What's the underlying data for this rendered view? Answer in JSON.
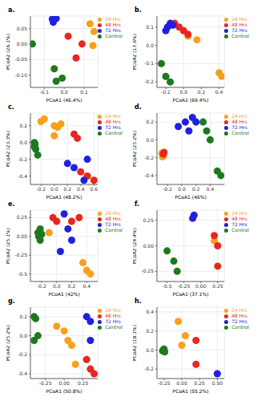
{
  "chart_data": [
    {
      "type": "scatter",
      "title": "a.",
      "x_label": "PCoA1 (46.4%)",
      "y_label": "PCoA2 (26.1%)",
      "grid": true,
      "legend": "right",
      "xlim": [
        -0.17,
        0.17
      ],
      "xticks": [
        -0.1,
        {
          "value": 0,
          "label": "0.0"
        },
        0.1
      ],
      "ylim": [
        -0.14,
        0.09
      ],
      "yticks": [
        {
          "value": -0.1,
          "label": "-0.10"
        },
        -0.05,
        {
          "value": 0,
          "label": "0.00"
        },
        0.05
      ],
      "series": [
        {
          "name": "24 Hrs",
          "color": "#f7a11a",
          "x": [
            0.13,
            0.15,
            0.145
          ],
          "y": [
            0.065,
            0.04,
            -0.005
          ]
        },
        {
          "name": "48 Hrs",
          "color": "#e8261f",
          "x": [
            0.02,
            0.09,
            0.06
          ],
          "y": [
            0.025,
            0.0,
            -0.045
          ]
        },
        {
          "name": "72 Hrs",
          "color": "#2020e0",
          "x": [
            -0.06,
            -0.055,
            -0.04
          ],
          "y": [
            0.08,
            0.07,
            0.082
          ]
        },
        {
          "name": "Control",
          "color": "#1c7a1c",
          "x": [
            -0.16,
            -0.05,
            -0.04,
            -0.01
          ],
          "y": [
            0.0,
            -0.08,
            -0.12,
            -0.11
          ]
        }
      ]
    },
    {
      "type": "scatter",
      "title": "b.",
      "x_label": "PCoA1 (69.4%)",
      "y_label": "PCoA2 (17.6%)",
      "grid": true,
      "legend": "right",
      "xlim": [
        -0.3,
        0.46
      ],
      "xticks": [
        -0.2,
        {
          "value": 0,
          "label": "0.0"
        },
        0.2,
        0.4
      ],
      "ylim": [
        -0.23,
        0.16
      ],
      "yticks": [
        -0.2,
        -0.1,
        {
          "value": 0,
          "label": "0.0"
        },
        0.1
      ],
      "series": [
        {
          "name": "24 Hrs",
          "color": "#f7a11a",
          "x": [
            0.05,
            0.15,
            0.4,
            0.43
          ],
          "y": [
            0.05,
            0.03,
            -0.15,
            -0.17
          ]
        },
        {
          "name": "48 Hrs",
          "color": "#e8261f",
          "x": [
            -0.1,
            -0.05,
            0.0,
            0.05
          ],
          "y": [
            0.12,
            0.1,
            0.08,
            0.06
          ]
        },
        {
          "name": "72 Hrs",
          "color": "#2020e0",
          "x": [
            -0.18,
            -0.15,
            -0.12,
            -0.2
          ],
          "y": [
            0.1,
            0.12,
            0.11,
            0.08
          ]
        },
        {
          "name": "Control",
          "color": "#1c7a1c",
          "x": [
            -0.25,
            -0.2,
            -0.15
          ],
          "y": [
            -0.1,
            -0.17,
            -0.2
          ]
        }
      ]
    },
    {
      "type": "scatter",
      "title": "c.",
      "x_label": "PCoA1 (48.2%)",
      "y_label": "PCoA2 (23.3%)",
      "grid": true,
      "legend": "right",
      "xlim": [
        -0.36,
        0.66
      ],
      "xticks": [
        -0.2,
        {
          "value": 0,
          "label": "0.0"
        },
        0.2,
        0.4,
        0.6
      ],
      "ylim": [
        -0.5,
        0.35
      ],
      "yticks": [
        -0.4,
        -0.2,
        {
          "value": 0,
          "label": "0.0"
        },
        0.2
      ],
      "series": [
        {
          "name": "24 Hrs",
          "color": "#f7a11a",
          "x": [
            -0.2,
            -0.15,
            0.0,
            0.1,
            0.05,
            0.0
          ],
          "y": [
            0.25,
            0.28,
            0.2,
            0.22,
            0.18,
            0.08
          ]
        },
        {
          "name": "48 Hrs",
          "color": "#e8261f",
          "x": [
            0.3,
            0.35,
            0.4,
            0.5,
            0.6
          ],
          "y": [
            0.1,
            0.05,
            -0.35,
            -0.4,
            -0.45
          ]
        },
        {
          "name": "72 Hrs",
          "color": "#2020e0",
          "x": [
            0.2,
            0.3,
            0.45,
            0.5
          ],
          "y": [
            -0.25,
            -0.3,
            -0.45,
            -0.2
          ]
        },
        {
          "name": "Control",
          "color": "#1c7a1c",
          "x": [
            -0.3,
            -0.29,
            -0.3,
            -0.28,
            -0.25
          ],
          "y": [
            0.0,
            -0.02,
            -0.05,
            -0.08,
            -0.15
          ]
        }
      ]
    },
    {
      "type": "scatter",
      "title": "d.",
      "x_label": "PCoA1 (46%)",
      "y_label": "PCoA2 (25.2%)",
      "grid": true,
      "legend": "right",
      "xlim": [
        -0.35,
        0.6
      ],
      "xticks": [
        -0.2,
        {
          "value": 0,
          "label": "0.0"
        },
        0.2,
        0.4
      ],
      "ylim": [
        -0.5,
        0.3
      ],
      "yticks": [
        -0.4,
        -0.2,
        {
          "value": 0,
          "label": "0.0"
        },
        0.2
      ],
      "series": [
        {
          "name": "24 Hrs",
          "color": "#f7a11a",
          "x": [
            -0.28,
            -0.27,
            -0.26,
            -0.27
          ],
          "y": [
            -0.15,
            -0.17,
            -0.18,
            -0.19
          ]
        },
        {
          "name": "48 Hrs",
          "color": "#e8261f",
          "x": [
            -0.25,
            -0.26
          ],
          "y": [
            -0.14,
            -0.16
          ]
        },
        {
          "name": "72 Hrs",
          "color": "#2020e0",
          "x": [
            -0.05,
            0.05,
            0.15,
            0.2,
            0.1
          ],
          "y": [
            0.15,
            0.2,
            0.25,
            0.2,
            0.1
          ]
        },
        {
          "name": "Control",
          "color": "#1c7a1c",
          "x": [
            0.3,
            0.35,
            0.4,
            0.5,
            0.55
          ],
          "y": [
            0.2,
            0.1,
            0.0,
            -0.35,
            -0.4
          ]
        }
      ]
    },
    {
      "type": "scatter",
      "title": "e.",
      "x_label": "PCoA1 (42%)",
      "y_label": "PCoA2 (25.1%)",
      "grid": true,
      "legend": "right",
      "xlim": [
        -0.35,
        0.55
      ],
      "xticks": [
        -0.2,
        {
          "value": 0,
          "label": "0.0"
        },
        0.2,
        0.4
      ],
      "ylim": [
        -0.6,
        0.35
      ],
      "yticks": [
        -0.5,
        -0.25,
        {
          "value": 0,
          "label": "0.00"
        },
        0.25
      ],
      "series": [
        {
          "name": "24 Hrs",
          "color": "#f7a11a",
          "x": [
            -0.1,
            0.35,
            0.4,
            0.45
          ],
          "y": [
            0.05,
            -0.35,
            -0.45,
            -0.5
          ]
        },
        {
          "name": "48 Hrs",
          "color": "#e8261f",
          "x": [
            -0.05,
            0.0,
            0.2,
            0.3
          ],
          "y": [
            0.25,
            0.2,
            0.2,
            0.25
          ]
        },
        {
          "name": "72 Hrs",
          "color": "#2020e0",
          "x": [
            0.1,
            0.15,
            0.2,
            0.05
          ],
          "y": [
            0.3,
            0.1,
            -0.05,
            -0.2
          ]
        },
        {
          "name": "Control",
          "color": "#1c7a1c",
          "x": [
            -0.25,
            -0.24,
            -0.22,
            -0.2,
            -0.22
          ],
          "y": [
            0.05,
            0.0,
            -0.05,
            0.03,
            0.1
          ]
        }
      ]
    },
    {
      "type": "scatter",
      "title": "f.",
      "x_label": "PCoA1 (37.1%)",
      "y_label": "PCoA2 (24.4%)",
      "grid": true,
      "legend": "right",
      "xlim": [
        -0.65,
        0.35
      ],
      "xticks": [
        -0.5,
        -0.25,
        {
          "value": 0,
          "label": "0.00"
        },
        0.25
      ],
      "ylim": [
        -0.35,
        0.35
      ],
      "yticks": [
        -0.25,
        {
          "value": 0,
          "label": "0.00"
        },
        0.25
      ],
      "series": [
        {
          "name": "24 Hrs",
          "color": "#f7a11a",
          "x": [
            0.2
          ],
          "y": [
            0.05
          ]
        },
        {
          "name": "48 Hrs",
          "color": "#e8261f",
          "x": [
            0.2,
            0.25,
            0.25
          ],
          "y": [
            0.1,
            0.0,
            -0.2
          ]
        },
        {
          "name": "72 Hrs",
          "color": "#2020e0",
          "x": [
            -0.1,
            -0.12
          ],
          "y": [
            0.3,
            0.27
          ]
        },
        {
          "name": "Control",
          "color": "#1c7a1c",
          "x": [
            -0.5,
            -0.4,
            -0.35
          ],
          "y": [
            -0.05,
            -0.15,
            -0.25
          ]
        }
      ]
    },
    {
      "type": "scatter",
      "title": "g.",
      "x_label": "PCoA1 (50.8%)",
      "y_label": "PCoA2 (25.2%)",
      "grid": true,
      "legend": "right",
      "xlim": [
        -0.45,
        0.45
      ],
      "xticks": [
        -0.25,
        {
          "value": 0,
          "label": "0.00"
        },
        0.25
      ],
      "ylim": [
        -0.45,
        0.3
      ],
      "yticks": [
        -0.4,
        -0.2,
        {
          "value": 0,
          "label": "0.0"
        },
        0.2
      ],
      "series": [
        {
          "name": "24 Hrs",
          "color": "#f7a11a",
          "x": [
            -0.1,
            0.0,
            0.05,
            0.1,
            0.15
          ],
          "y": [
            0.1,
            0.05,
            -0.05,
            -0.1,
            -0.3
          ]
        },
        {
          "name": "48 Hrs",
          "color": "#e8261f",
          "x": [
            0.3,
            0.35,
            0.4
          ],
          "y": [
            -0.25,
            -0.35,
            -0.4
          ]
        },
        {
          "name": "72 Hrs",
          "color": "#2020e0",
          "x": [
            0.3,
            0.35,
            0.35
          ],
          "y": [
            0.2,
            0.15,
            -0.05
          ]
        },
        {
          "name": "Control",
          "color": "#1c7a1c",
          "x": [
            -0.4,
            -0.38,
            -0.35,
            -0.4
          ],
          "y": [
            0.2,
            0.18,
            0.0,
            -0.05
          ]
        }
      ]
    },
    {
      "type": "scatter",
      "title": "h.",
      "x_label": "PCoA1 (55.2%)",
      "y_label": "PCoA2 (18.1%)",
      "grid": true,
      "legend": "right",
      "xlim": [
        -0.35,
        0.6
      ],
      "xticks": [
        -0.25,
        {
          "value": 0,
          "label": "0.00"
        },
        0.25,
        {
          "value": 0.5,
          "label": "0.50"
        }
      ],
      "ylim": [
        -0.3,
        0.45
      ],
      "yticks": [
        -0.2,
        {
          "value": 0,
          "label": "0.0"
        },
        0.2,
        0.4
      ],
      "series": [
        {
          "name": "24 Hrs",
          "color": "#f7a11a",
          "x": [
            -0.05,
            0.0,
            0.05
          ],
          "y": [
            0.3,
            0.05,
            0.15
          ]
        },
        {
          "name": "48 Hrs",
          "color": "#e8261f",
          "x": [
            0.2,
            0.2
          ],
          "y": [
            0.1,
            -0.15
          ]
        },
        {
          "name": "72 Hrs",
          "color": "#2020e0",
          "x": [
            0.5
          ],
          "y": [
            -0.25
          ]
        },
        {
          "name": "Control",
          "color": "#1c7a1c",
          "x": [
            -0.27,
            -0.26,
            -0.25,
            -0.24
          ],
          "y": [
            -0.01,
            0.0,
            0.01,
            -0.02
          ]
        }
      ]
    }
  ]
}
